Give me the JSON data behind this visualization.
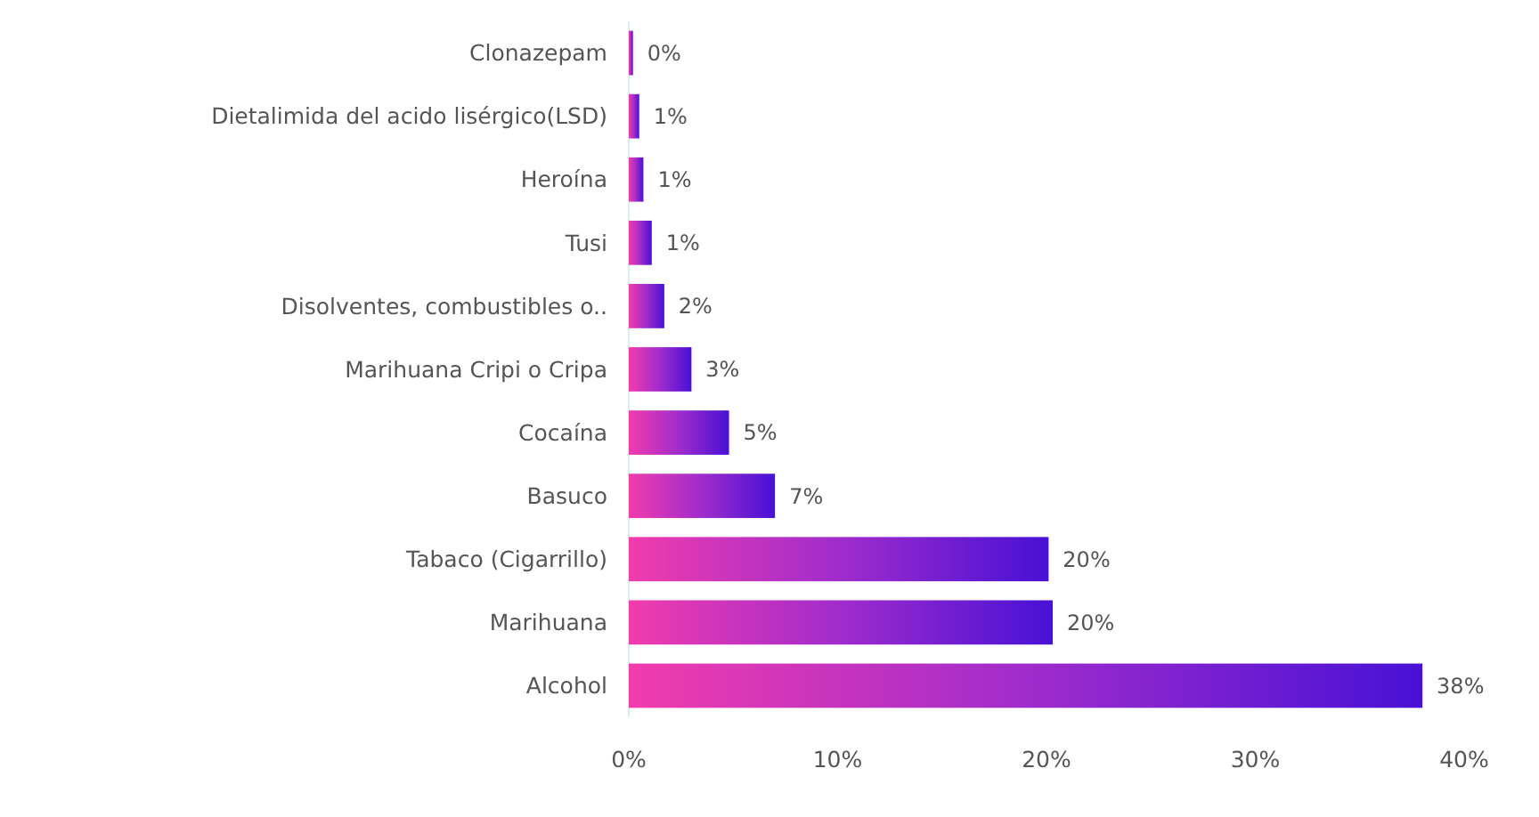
{
  "chart_data": {
    "type": "bar",
    "orientation": "horizontal",
    "categories": [
      "Clonazepam",
      "Dietalimida del acido lisérgico(LSD)",
      "Heroína",
      "Tusi",
      "Disolventes, combustibles o..",
      "Marihuana Cripi o Cripa",
      "Cocaína",
      "Basuco",
      "Tabaco (Cigarrillo)",
      "Marihuana",
      "Alcohol"
    ],
    "values": [
      0.2,
      0.5,
      0.7,
      1.1,
      1.7,
      3.0,
      4.8,
      7.0,
      20.1,
      20.3,
      38.0
    ],
    "value_labels": [
      "0%",
      "1%",
      "1%",
      "1%",
      "2%",
      "3%",
      "5%",
      "7%",
      "20%",
      "20%",
      "38%"
    ],
    "color": "#a02ccc",
    "xlim": [
      0,
      40
    ],
    "xticks": [
      {
        "value": 0,
        "label": "0%"
      },
      {
        "value": 10,
        "label": "10%"
      },
      {
        "value": 20,
        "label": "20%"
      },
      {
        "value": 30,
        "label": "30%"
      },
      {
        "value": 40,
        "label": "40%"
      }
    ],
    "grid": false
  }
}
